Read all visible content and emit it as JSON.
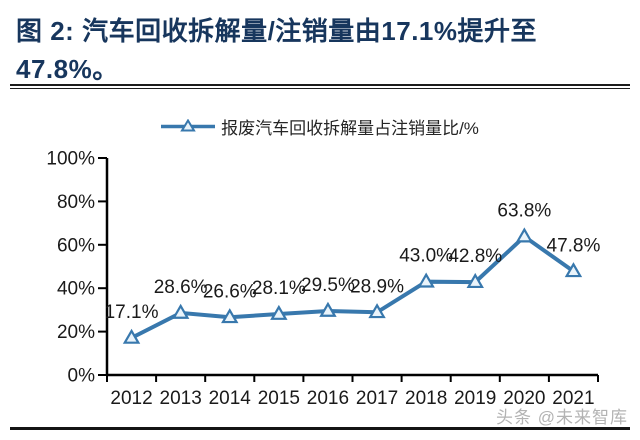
{
  "header": {
    "title_lines": [
      "图 2: 汽车回收拆解量/注销量由17.1%提升至",
      "47.8%。"
    ],
    "title_color": "#17365D"
  },
  "legend": {
    "label": "报废汽车回收拆解量占注销量比/%"
  },
  "chart_data": {
    "type": "line",
    "title": "图 2: 汽车回收拆解量/注销量由17.1%提升至47.8%。",
    "categories": [
      "2012",
      "2013",
      "2014",
      "2015",
      "2016",
      "2017",
      "2018",
      "2019",
      "2020",
      "2021"
    ],
    "series": [
      {
        "name": "报废汽车回收拆解量占注销量比/%",
        "values": [
          17.1,
          28.6,
          26.6,
          28.1,
          29.5,
          28.9,
          43.0,
          42.8,
          63.8,
          47.8
        ]
      }
    ],
    "data_labels": [
      "17.1%",
      "28.6%",
      "26.6%",
      "28.1%",
      "29.5%",
      "28.9%",
      "43.0%",
      "42.8%",
      "63.8%",
      "47.8%"
    ],
    "xlabel": "",
    "ylabel": "",
    "ylim": [
      0,
      100
    ],
    "ytick_values": [
      0,
      20,
      40,
      60,
      80,
      100
    ],
    "ytick_labels": [
      "0%",
      "20%",
      "40%",
      "60%",
      "80%",
      "100%"
    ],
    "grid": false,
    "legend_position": "top",
    "line_color": "#3878AD",
    "marker": "triangle-up",
    "marker_fill": "#EAF4FB",
    "axis_color": "#000000",
    "label_color": "#1a1a1a"
  },
  "watermark": {
    "text": "头条 @未来智库"
  }
}
